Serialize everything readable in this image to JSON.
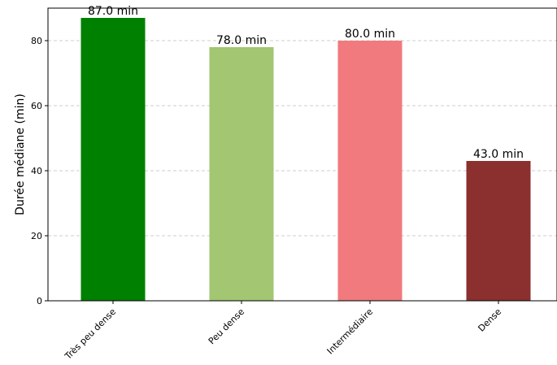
{
  "chart_data": {
    "type": "bar",
    "title": "",
    "xlabel": "",
    "ylabel": "Durée médiane (min)",
    "categories": [
      "Très peu dense",
      "Peu dense",
      "Intermédiaire",
      "Dense"
    ],
    "values": [
      87.0,
      78.0,
      80.0,
      43.0
    ],
    "data_labels": [
      "87.0 min",
      "78.0 min",
      "80.0 min",
      "43.0 min"
    ],
    "colors": [
      "#008000",
      "#a2c672",
      "#f07a7e",
      "#8b2f2f"
    ],
    "ylim": [
      0,
      90
    ],
    "yticks": [
      0,
      20,
      40,
      60,
      80
    ],
    "ytick_labels": [
      "0",
      "20",
      "40",
      "60",
      "80"
    ],
    "grid": "horizontal dashed",
    "legend": "none"
  }
}
